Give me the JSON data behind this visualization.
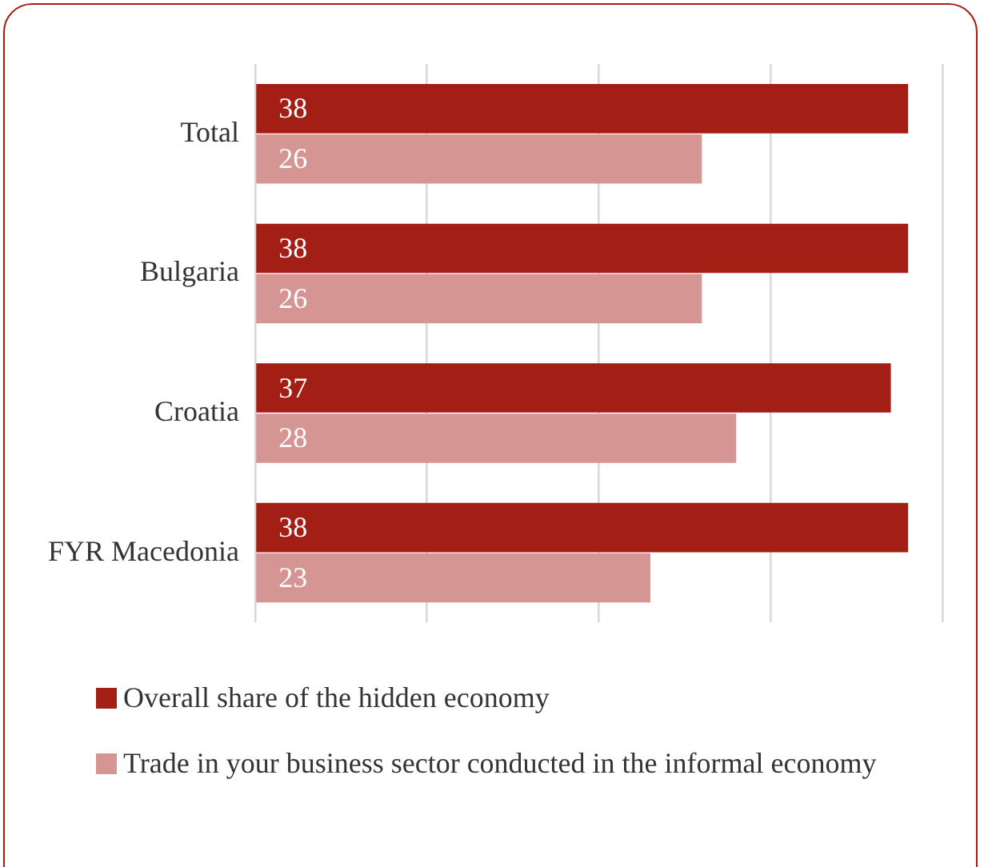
{
  "chart_data": {
    "type": "bar",
    "orientation": "horizontal",
    "categories": [
      "Total",
      "Bulgaria",
      "Croatia",
      "FYR Macedonia"
    ],
    "series": [
      {
        "name": "Overall share of the hidden economy",
        "color": "#a31e14",
        "values": [
          38,
          38,
          37,
          38
        ]
      },
      {
        "name": "Trade in your business sector conducted in the informal economy",
        "color": "#d49593",
        "values": [
          26,
          26,
          28,
          23
        ]
      }
    ],
    "xlim": [
      0,
      40
    ],
    "xticks": [
      {
        "value": 0,
        "label": null
      },
      {
        "value": 10,
        "label": null
      },
      {
        "value": 20,
        "label": null
      },
      {
        "value": 30,
        "label": null
      },
      {
        "value": 40,
        "label": null
      }
    ],
    "tick_labels": "y",
    "grid": "x",
    "legend": "bottom",
    "data_labels": true
  }
}
